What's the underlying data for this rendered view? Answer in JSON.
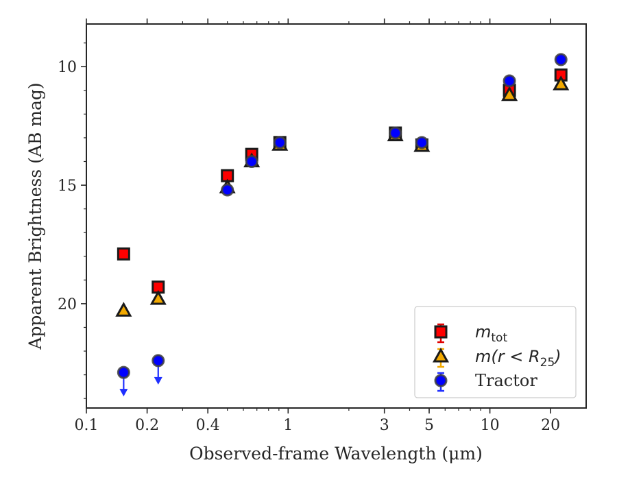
{
  "chart_data": {
    "type": "scatter",
    "xlabel": "Observed-frame Wavelength (μm)",
    "ylabel": "Apparent Brightness (AB mag)",
    "xscale": "log",
    "xlim": [
      0.1,
      30
    ],
    "ylim": [
      24.4,
      8.2
    ],
    "y_inverted": true,
    "x_ticks": [
      0.1,
      0.2,
      0.4,
      1,
      3,
      5,
      10,
      20
    ],
    "x_tick_labels": [
      "0.1",
      "0.2",
      "0.4",
      "1",
      "3",
      "5",
      "10",
      "20"
    ],
    "y_ticks": [
      10,
      15,
      20
    ],
    "y_tick_labels": [
      "10",
      "15",
      "20"
    ],
    "legend_position": "lower right",
    "series": [
      {
        "label_main": "m",
        "label_sub": "tot",
        "marker": "square",
        "color": "#ff0000",
        "edge": "#1a1a1a",
        "errcolor": "#e00000",
        "points": [
          {
            "x": 0.153,
            "y": 17.9
          },
          {
            "x": 0.227,
            "y": 19.3
          },
          {
            "x": 0.5,
            "y": 14.6
          },
          {
            "x": 0.66,
            "y": 13.7
          },
          {
            "x": 0.91,
            "y": 13.2
          },
          {
            "x": 3.4,
            "y": 12.8
          },
          {
            "x": 4.6,
            "y": 13.3
          },
          {
            "x": 12.5,
            "y": 11.0
          },
          {
            "x": 22.5,
            "y": 10.35
          }
        ]
      },
      {
        "label_main": "m(r < R",
        "label_sub": "25",
        "label_tail": ")",
        "marker": "triangle",
        "color": "#f2a900",
        "edge": "#1a1a1a",
        "errcolor": "#f2a900",
        "points": [
          {
            "x": 0.153,
            "y": 20.3
          },
          {
            "x": 0.227,
            "y": 19.8
          },
          {
            "x": 0.5,
            "y": 15.1
          },
          {
            "x": 0.66,
            "y": 14.0
          },
          {
            "x": 0.91,
            "y": 13.3
          },
          {
            "x": 3.4,
            "y": 12.9
          },
          {
            "x": 4.6,
            "y": 13.35
          },
          {
            "x": 12.5,
            "y": 11.2
          },
          {
            "x": 22.5,
            "y": 10.75
          }
        ]
      },
      {
        "label_main": "Tractor",
        "marker": "circle",
        "color": "#0000ff",
        "edge": "#404040",
        "errcolor": "#1f2fff",
        "points": [
          {
            "x": 0.153,
            "y": 22.9,
            "upper_limit": true
          },
          {
            "x": 0.227,
            "y": 22.4,
            "upper_limit": true
          },
          {
            "x": 0.5,
            "y": 15.2
          },
          {
            "x": 0.66,
            "y": 14.0
          },
          {
            "x": 0.91,
            "y": 13.2
          },
          {
            "x": 3.4,
            "y": 12.8
          },
          {
            "x": 4.6,
            "y": 13.2
          },
          {
            "x": 12.5,
            "y": 10.6
          },
          {
            "x": 22.5,
            "y": 9.7
          }
        ]
      }
    ]
  }
}
